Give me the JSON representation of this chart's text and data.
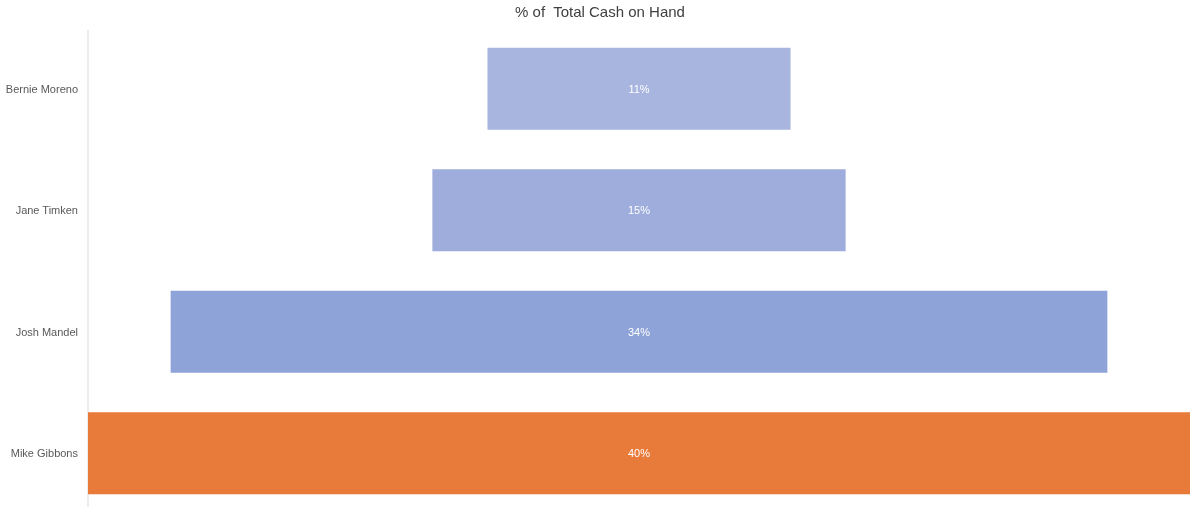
{
  "chart_data": {
    "type": "other",
    "title": "% of  Total Cash on Hand",
    "categories": [
      "Bernie Moreno",
      "Jane Timken",
      "Josh Mandel",
      "Mike Gibbons"
    ],
    "values": [
      11,
      15,
      34,
      40
    ],
    "value_labels": [
      "11%",
      "15%",
      "34%",
      "40%"
    ],
    "colors": [
      "#a7b5df",
      "#9eaddb",
      "#8ea3d7",
      "#e97b3a"
    ]
  }
}
